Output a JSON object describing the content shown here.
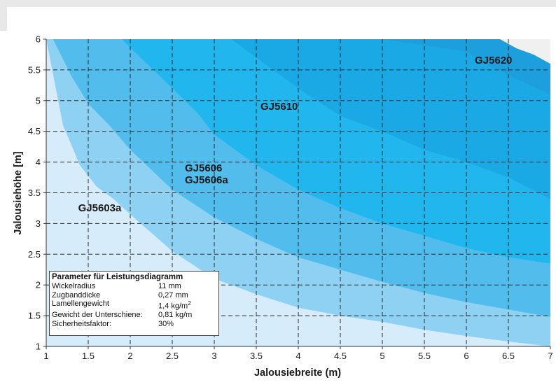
{
  "chart_data": {
    "type": "area",
    "xlabel": "Jalousiebreite (m)",
    "ylabel": "Jalousiehöhe [m]",
    "xlim": [
      1,
      7
    ],
    "ylim": [
      1,
      6
    ],
    "x_ticks": [
      "1",
      "1.5",
      "2",
      "2.5",
      "3",
      "3.5",
      "4",
      "4.5",
      "5",
      "5.5",
      "6",
      "6.5",
      "7"
    ],
    "y_ticks": [
      "1",
      "1.5",
      "2",
      "2.5",
      "3",
      "3.5",
      "4",
      "4.5",
      "5",
      "5.5",
      "6"
    ],
    "grid": true,
    "regions": [
      {
        "label": "GJ5603a",
        "color": "#d6ecfb",
        "boundary": []
      },
      {
        "label": "GJ5606\nGJ5606a",
        "color": "#8fd1f3",
        "boundary": [
          [
            1,
            6
          ],
          [
            1.2,
            4.6
          ],
          [
            1.4,
            3.95
          ],
          [
            1.6,
            3.6
          ],
          [
            1.8,
            3.4
          ],
          [
            2,
            3.15
          ],
          [
            2.5,
            2.55
          ],
          [
            3,
            2.1
          ],
          [
            3.5,
            1.85
          ],
          [
            4,
            1.63
          ],
          [
            4.5,
            1.5
          ],
          [
            5,
            1.4
          ],
          [
            5.5,
            1.27
          ],
          [
            6,
            1.17
          ],
          [
            6.5,
            1.08
          ],
          [
            7,
            1.0
          ]
        ]
      },
      {
        "label": "GJ5610",
        "color": "#52bdec",
        "boundary": [
          [
            1.08,
            6
          ],
          [
            1.3,
            5.4
          ],
          [
            1.5,
            4.95
          ],
          [
            1.75,
            4.6
          ],
          [
            2,
            4.2
          ],
          [
            2.5,
            3.55
          ],
          [
            3,
            3.1
          ],
          [
            3.5,
            2.75
          ],
          [
            4,
            2.45
          ],
          [
            4.5,
            2.25
          ],
          [
            5,
            2.05
          ],
          [
            5.5,
            1.87
          ],
          [
            6,
            1.72
          ],
          [
            6.5,
            1.6
          ],
          [
            7,
            1.48
          ]
        ]
      },
      {
        "label": "",
        "color": "#22b6ee",
        "boundary": [
          [
            1.9,
            6
          ],
          [
            2.2,
            5.6
          ],
          [
            2.5,
            5.2
          ],
          [
            2.8,
            4.8
          ],
          [
            3,
            4.45
          ],
          [
            3.5,
            3.95
          ],
          [
            4,
            3.55
          ],
          [
            4.5,
            3.25
          ],
          [
            5,
            3
          ],
          [
            5.5,
            2.8
          ],
          [
            6,
            2.6
          ],
          [
            6.5,
            2.45
          ],
          [
            7,
            2.35
          ]
        ]
      },
      {
        "label": "",
        "color": "#1aa9e4",
        "boundary": [
          [
            3.2,
            6
          ],
          [
            3.6,
            5.6
          ],
          [
            4,
            5.2
          ],
          [
            4.5,
            4.75
          ],
          [
            5,
            4.5
          ],
          [
            5.5,
            4.2
          ],
          [
            6,
            4
          ],
          [
            6.5,
            3.75
          ],
          [
            7,
            3.4
          ]
        ]
      },
      {
        "label": "GJ5620",
        "color": "#1c9fdc",
        "boundary": [
          [
            5,
            6
          ],
          [
            5.5,
            5.9
          ],
          [
            6,
            5.8
          ],
          [
            6.3,
            5.55
          ],
          [
            6.6,
            5.35
          ],
          [
            7,
            5.1
          ]
        ]
      },
      {
        "label": "",
        "color": "#f0f0f0",
        "boundary": [
          [
            6.4,
            6
          ],
          [
            6.6,
            5.85
          ],
          [
            6.8,
            5.75
          ],
          [
            7,
            5.6
          ]
        ]
      }
    ]
  },
  "legend": {
    "title": "Parameter für Leistungsdiagramm",
    "rows": [
      {
        "key": "Wickelradius",
        "value": "11 mm"
      },
      {
        "key": "Zugbanddicke",
        "value": "0,27 mm"
      },
      {
        "key": "Lamellengewicht",
        "value": "1,4 kg/m",
        "sup": "2"
      },
      {
        "key": "Gewicht der Unterschiene:",
        "value": "0,81 kg/m"
      },
      {
        "key": "Sicherheitsfaktor:",
        "value": "30%"
      }
    ]
  }
}
